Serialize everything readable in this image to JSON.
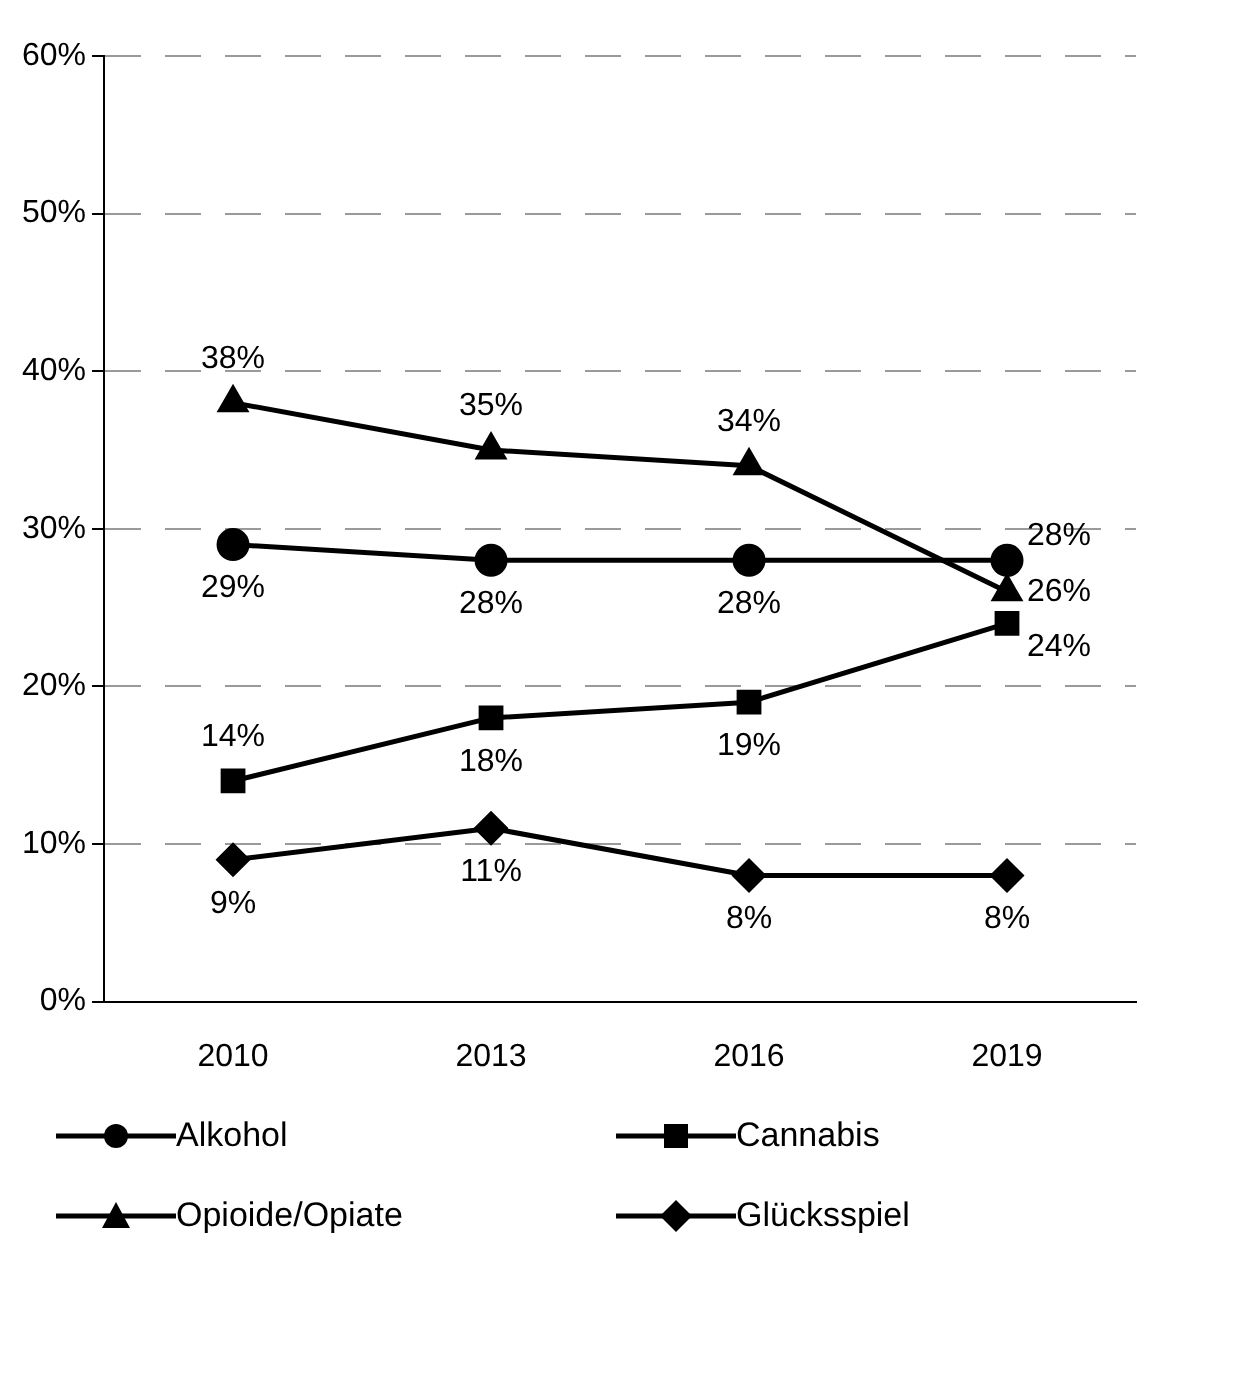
{
  "chart_data": {
    "type": "line",
    "categories": [
      "2010",
      "2013",
      "2016",
      "2019"
    ],
    "series": [
      {
        "name": "Alkohol",
        "color": "#000000",
        "marker": "circle",
        "values": [
          29,
          28,
          28,
          28
        ],
        "value_labels": [
          "29%",
          "28%",
          "28%",
          "28%"
        ]
      },
      {
        "name": "Cannabis",
        "color": "#000000",
        "marker": "square",
        "values": [
          14,
          18,
          19,
          24
        ],
        "value_labels": [
          "14%",
          "18%",
          "19%",
          "24%"
        ]
      },
      {
        "name": "Opioide/Opiate",
        "color": "#000000",
        "marker": "triangle",
        "values": [
          38,
          35,
          34,
          26
        ],
        "value_labels": [
          "38%",
          "35%",
          "34%",
          "26%"
        ]
      },
      {
        "name": "Glücksspiel",
        "color": "#000000",
        "marker": "diamond",
        "values": [
          9,
          11,
          8,
          8
        ],
        "value_labels": [
          "9%",
          "11%",
          "8%",
          "8%"
        ]
      }
    ],
    "ylim": [
      0,
      60
    ],
    "yticks": [
      {
        "value": 0,
        "label": "0%"
      },
      {
        "value": 10,
        "label": "10%"
      },
      {
        "value": 20,
        "label": "20%"
      },
      {
        "value": 30,
        "label": "30%"
      },
      {
        "value": 40,
        "label": "40%"
      },
      {
        "value": 50,
        "label": "50%"
      },
      {
        "value": 60,
        "label": "60%"
      }
    ],
    "grid": "y",
    "legend": "bottom",
    "line_style": "solid"
  }
}
